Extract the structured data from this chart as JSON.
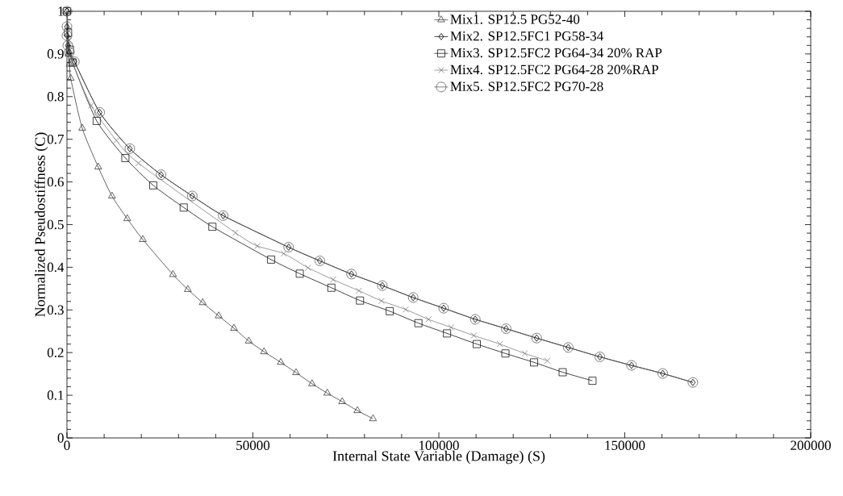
{
  "chart_data": {
    "type": "line",
    "xlabel": "Internal State Variable (Damage) (S)",
    "ylabel": "Normalized Pseudostiffness (C)",
    "xlim": [
      0,
      200000
    ],
    "ylim": [
      0,
      1
    ],
    "xticks": [
      0,
      50000,
      100000,
      150000,
      200000
    ],
    "yticks": [
      0,
      0.1,
      0.2,
      0.3,
      0.4,
      0.5,
      0.6,
      0.7,
      0.8,
      0.9,
      1
    ],
    "grid": false,
    "legend": "top right",
    "line_style": "solid",
    "series": [
      {
        "name": "Mix1. SP12.5 PG52-40",
        "color": "#3c3c3c",
        "marker": "triangle",
        "x": [
          0,
          400,
          700,
          1000,
          4100,
          8400,
          12100,
          16200,
          20400,
          28500,
          32500,
          36500,
          40800,
          44900,
          48900,
          53000,
          57500,
          61600,
          65900,
          70000,
          74000,
          78100,
          82300
        ],
        "values": [
          1,
          0.9,
          0.876,
          0.843,
          0.726,
          0.635,
          0.567,
          0.514,
          0.465,
          0.383,
          0.348,
          0.317,
          0.286,
          0.257,
          0.227,
          0.202,
          0.177,
          0.153,
          0.127,
          0.105,
          0.085,
          0.064,
          0.045
        ]
      },
      {
        "name": "Mix2. SP12.5FC1 PG58-34",
        "color": "#000000",
        "marker": "diamond",
        "x": [
          0,
          0,
          0,
          250,
          650,
          2000,
          8800,
          16900,
          25300,
          33700,
          42000,
          59600,
          68000,
          76500,
          84800,
          93100,
          101300,
          109800,
          118100,
          126300,
          134800,
          143300,
          151800,
          160200,
          168300
        ],
        "values": [
          1,
          0.964,
          0.943,
          0.92,
          0.904,
          0.882,
          0.763,
          0.678,
          0.617,
          0.567,
          0.521,
          0.447,
          0.415,
          0.384,
          0.357,
          0.329,
          0.304,
          0.278,
          0.256,
          0.234,
          0.212,
          0.19,
          0.17,
          0.151,
          0.13
        ]
      },
      {
        "name": "Mix3. SP12.5FC2 PG64-34 20% RAP",
        "color": "#141414",
        "marker": "square",
        "x": [
          0,
          300,
          800,
          1500,
          8000,
          15700,
          23200,
          31400,
          39100,
          54900,
          62600,
          71100,
          78800,
          86800,
          94500,
          102200,
          110200,
          117900,
          125600,
          133300,
          141300
        ],
        "values": [
          1,
          0.95,
          0.91,
          0.88,
          0.743,
          0.656,
          0.592,
          0.54,
          0.495,
          0.418,
          0.385,
          0.352,
          0.322,
          0.297,
          0.269,
          0.245,
          0.22,
          0.198,
          0.177,
          0.154,
          0.134
        ]
      },
      {
        "name": "Mix4. SP12.5FC2 PG64-28 20%RAP",
        "color": "#808080",
        "marker": "cross",
        "x": [
          0,
          500,
          1500,
          6500,
          13300,
          19200,
          45300,
          51200,
          58300,
          64800,
          71600,
          78500,
          84600,
          91100,
          97200,
          103300,
          109400,
          116400,
          123100,
          129200
        ],
        "values": [
          1,
          0.93,
          0.88,
          0.779,
          0.697,
          0.644,
          0.481,
          0.45,
          0.432,
          0.399,
          0.371,
          0.345,
          0.321,
          0.301,
          0.278,
          0.259,
          0.24,
          0.22,
          0.198,
          0.181
        ]
      },
      {
        "name": "Mix5. SP12.5FC2 PG70-28",
        "color": "#5a5a5a",
        "marker": "circle",
        "x": [
          0,
          0,
          0,
          250,
          650,
          2000,
          8800,
          16900,
          25300,
          33700,
          42000,
          59600,
          68000,
          76500,
          84800,
          93100,
          101300,
          109800,
          118100,
          126300,
          134800,
          143300,
          151800,
          160200,
          168300
        ],
        "values": [
          1,
          0.964,
          0.943,
          0.92,
          0.904,
          0.882,
          0.763,
          0.678,
          0.617,
          0.567,
          0.521,
          0.447,
          0.415,
          0.384,
          0.357,
          0.329,
          0.304,
          0.278,
          0.256,
          0.234,
          0.212,
          0.19,
          0.17,
          0.151,
          0.13
        ]
      }
    ]
  }
}
